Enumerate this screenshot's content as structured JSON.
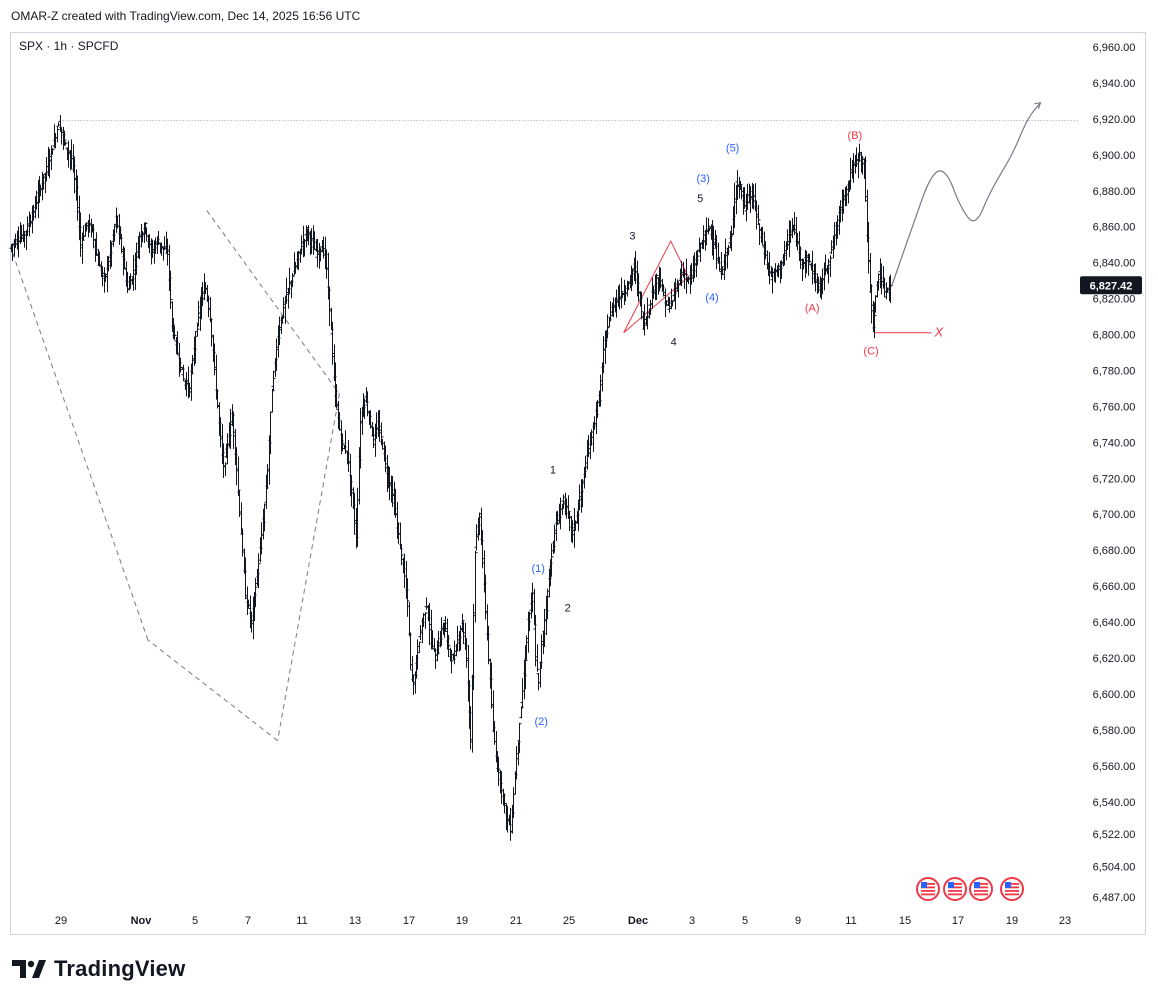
{
  "header": {
    "caption": "OMAR-Z created with TradingView.com, Dec 14, 2025 16:56 UTC"
  },
  "symbol": {
    "text": "SPX · 1h · SPCFD"
  },
  "brand": {
    "name": "TradingView",
    "icon": "tradingview-logo-icon"
  },
  "colors": {
    "bar": "#131722",
    "blue": "#2962ff",
    "red": "#f23645",
    "grid_line": "#d1d4dc",
    "projection": "#787b86"
  },
  "chart_data": {
    "type": "ohlc",
    "price_label": "6,827.42",
    "x_ticks": [
      "29",
      "Nov",
      "5",
      "7",
      "11",
      "13",
      "17",
      "19",
      "21",
      "25",
      "Dec",
      "3",
      "5",
      "9",
      "11",
      "15",
      "17",
      "19",
      "23"
    ],
    "y_ticks": [
      {
        "value": 6960,
        "label": "6,960.00"
      },
      {
        "value": 6940,
        "label": "6,940.00"
      },
      {
        "value": 6920,
        "label": "6,920.00"
      },
      {
        "value": 6900,
        "label": "6,900.00"
      },
      {
        "value": 6880,
        "label": "6,880.00"
      },
      {
        "value": 6860,
        "label": "6,860.00"
      },
      {
        "value": 6840,
        "label": "6,840.00"
      },
      {
        "value": 6820,
        "label": "6,820.00"
      },
      {
        "value": 6800,
        "label": "6,800.00"
      },
      {
        "value": 6780,
        "label": "6,780.00"
      },
      {
        "value": 6760,
        "label": "6,760.00"
      },
      {
        "value": 6740,
        "label": "6,740.00"
      },
      {
        "value": 6720,
        "label": "6,720.00"
      },
      {
        "value": 6700,
        "label": "6,700.00"
      },
      {
        "value": 6680,
        "label": "6,680.00"
      },
      {
        "value": 6660,
        "label": "6,660.00"
      },
      {
        "value": 6640,
        "label": "6,640.00"
      },
      {
        "value": 6620,
        "label": "6,620.00"
      },
      {
        "value": 6600,
        "label": "6,600.00"
      },
      {
        "value": 6580,
        "label": "6,580.00"
      },
      {
        "value": 6560,
        "label": "6,560.00"
      },
      {
        "value": 6540,
        "label": "6,540.00"
      },
      {
        "value": 6522,
        "label": "6,522.00"
      },
      {
        "value": 6504,
        "label": "6,504.00"
      },
      {
        "value": 6487,
        "label": "6,487.00"
      }
    ],
    "price_path": [
      [
        0,
        6848
      ],
      [
        5,
        6853
      ],
      [
        10,
        6856
      ],
      [
        15,
        6866
      ],
      [
        20,
        6880
      ],
      [
        25,
        6892
      ],
      [
        30,
        6908
      ],
      [
        33,
        6918
      ],
      [
        38,
        6905
      ],
      [
        42,
        6898
      ],
      [
        45,
        6880
      ],
      [
        48,
        6850
      ],
      [
        52,
        6862
      ],
      [
        56,
        6858
      ],
      [
        60,
        6840
      ],
      [
        64,
        6830
      ],
      [
        68,
        6845
      ],
      [
        72,
        6865
      ],
      [
        76,
        6848
      ],
      [
        80,
        6825
      ],
      [
        84,
        6835
      ],
      [
        88,
        6855
      ],
      [
        92,
        6860
      ],
      [
        96,
        6845
      ],
      [
        100,
        6852
      ],
      [
        104,
        6848
      ],
      [
        107,
        6845
      ],
      [
        110,
        6805
      ],
      [
        114,
        6790
      ],
      [
        118,
        6775
      ],
      [
        122,
        6770
      ],
      [
        126,
        6800
      ],
      [
        130,
        6820
      ],
      [
        133,
        6826
      ],
      [
        136,
        6810
      ],
      [
        139,
        6780
      ],
      [
        142,
        6750
      ],
      [
        145,
        6725
      ],
      [
        148,
        6740
      ],
      [
        151,
        6755
      ],
      [
        154,
        6725
      ],
      [
        157,
        6690
      ],
      [
        160,
        6655
      ],
      [
        164,
        6640
      ],
      [
        167,
        6660
      ],
      [
        170,
        6680
      ],
      [
        173,
        6705
      ],
      [
        175,
        6725
      ],
      [
        178,
        6770
      ],
      [
        182,
        6800
      ],
      [
        186,
        6815
      ],
      [
        190,
        6828
      ],
      [
        194,
        6838
      ],
      [
        198,
        6850
      ],
      [
        202,
        6858
      ],
      [
        205,
        6852
      ],
      [
        208,
        6845
      ],
      [
        211,
        6848
      ],
      [
        214,
        6845
      ],
      [
        217,
        6815
      ],
      [
        220,
        6775
      ],
      [
        223,
        6752
      ],
      [
        226,
        6738
      ],
      [
        229,
        6735
      ],
      [
        232,
        6712
      ],
      [
        235,
        6688
      ],
      [
        238,
        6752
      ],
      [
        241,
        6765
      ],
      [
        244,
        6755
      ],
      [
        247,
        6740
      ],
      [
        250,
        6750
      ],
      [
        253,
        6738
      ],
      [
        256,
        6722
      ],
      [
        259,
        6715
      ],
      [
        262,
        6700
      ],
      [
        265,
        6682
      ],
      [
        268,
        6665
      ],
      [
        270,
        6650
      ],
      [
        272,
        6615
      ],
      [
        274,
        6605
      ],
      [
        277,
        6625
      ],
      [
        280,
        6640
      ],
      [
        283,
        6650
      ],
      [
        286,
        6630
      ],
      [
        289,
        6620
      ],
      [
        292,
        6632
      ],
      [
        295,
        6640
      ],
      [
        298,
        6625
      ],
      [
        301,
        6618
      ],
      [
        304,
        6630
      ],
      [
        307,
        6640
      ],
      [
        310,
        6620
      ],
      [
        313,
        6575
      ],
      [
        316,
        6680
      ],
      [
        319,
        6700
      ],
      [
        322,
        6660
      ],
      [
        325,
        6620
      ],
      [
        328,
        6580
      ],
      [
        331,
        6560
      ],
      [
        334,
        6548
      ],
      [
        337,
        6532
      ],
      [
        340,
        6525
      ],
      [
        343,
        6555
      ],
      [
        346,
        6585
      ],
      [
        349,
        6610
      ],
      [
        352,
        6640
      ],
      [
        355,
        6655
      ],
      [
        357,
        6620
      ],
      [
        359,
        6605
      ],
      [
        361,
        6628
      ],
      [
        364,
        6648
      ],
      [
        367,
        6672
      ],
      [
        370,
        6690
      ],
      [
        373,
        6700
      ],
      [
        376,
        6708
      ],
      [
        379,
        6700
      ],
      [
        382,
        6690
      ],
      [
        385,
        6700
      ],
      [
        388,
        6712
      ],
      [
        391,
        6728
      ],
      [
        394,
        6740
      ],
      [
        397,
        6752
      ],
      [
        400,
        6765
      ],
      [
        403,
        6790
      ],
      [
        406,
        6805
      ],
      [
        409,
        6815
      ],
      [
        412,
        6820
      ],
      [
        415,
        6822
      ],
      [
        418,
        6825
      ],
      [
        421,
        6830
      ],
      [
        424,
        6838
      ],
      [
        427,
        6825
      ],
      [
        430,
        6805
      ],
      [
        433,
        6812
      ],
      [
        436,
        6822
      ],
      [
        439,
        6832
      ],
      [
        442,
        6828
      ],
      [
        445,
        6818
      ],
      [
        448,
        6815
      ],
      [
        451,
        6822
      ],
      [
        454,
        6830
      ],
      [
        457,
        6835
      ],
      [
        460,
        6830
      ],
      [
        463,
        6832
      ],
      [
        466,
        6842
      ],
      [
        469,
        6850
      ],
      [
        472,
        6856
      ],
      [
        475,
        6860
      ],
      [
        478,
        6852
      ],
      [
        481,
        6838
      ],
      [
        484,
        6835
      ],
      [
        487,
        6848
      ],
      [
        490,
        6855
      ],
      [
        493,
        6885
      ],
      [
        496,
        6882
      ],
      [
        499,
        6870
      ],
      [
        502,
        6878
      ],
      [
        505,
        6875
      ],
      [
        508,
        6862
      ],
      [
        511,
        6850
      ],
      [
        514,
        6840
      ],
      [
        517,
        6832
      ],
      [
        520,
        6835
      ],
      [
        523,
        6838
      ],
      [
        526,
        6845
      ],
      [
        529,
        6855
      ],
      [
        532,
        6860
      ],
      [
        535,
        6850
      ],
      [
        538,
        6840
      ],
      [
        541,
        6842
      ],
      [
        544,
        6838
      ],
      [
        547,
        6830
      ],
      [
        550,
        6825
      ],
      [
        553,
        6835
      ],
      [
        556,
        6840
      ],
      [
        559,
        6852
      ],
      [
        562,
        6862
      ],
      [
        565,
        6875
      ],
      [
        568,
        6880
      ],
      [
        571,
        6890
      ],
      [
        574,
        6895
      ],
      [
        577,
        6900
      ],
      [
        580,
        6895
      ],
      [
        582,
        6855
      ],
      [
        584,
        6825
      ],
      [
        586,
        6805
      ],
      [
        588,
        6820
      ],
      [
        590,
        6835
      ],
      [
        592,
        6830
      ],
      [
        594,
        6822
      ],
      [
        596,
        6826
      ],
      [
        598,
        6827
      ]
    ],
    "reference_lines": [
      {
        "style": "dotted",
        "from": [
          33,
          6919
        ],
        "to": [
          725,
          6919
        ]
      },
      {
        "style": "dashed",
        "from": [
          133,
          6869
        ],
        "to": [
          223,
          6767
        ]
      },
      {
        "style": "dashed",
        "from": [
          223,
          6767
        ],
        "to": [
          181,
          6574
        ]
      },
      {
        "style": "dashed",
        "from": [
          181,
          6574
        ],
        "to": [
          93,
          6630
        ]
      },
      {
        "style": "dashed",
        "from": [
          93,
          6630
        ],
        "to": [
          0,
          6848
        ]
      },
      {
        "style": "solid",
        "color": "red",
        "from": [
          586,
          6801
        ],
        "to": [
          625,
          6801
        ]
      }
    ],
    "triangle": [
      [
        416,
        6801
      ],
      [
        448,
        6852
      ],
      [
        460,
        6832
      ]
    ],
    "projection_path": [
      [
        598,
        6827
      ],
      [
        612,
        6860
      ],
      [
        625,
        6890
      ],
      [
        635,
        6892
      ],
      [
        645,
        6870
      ],
      [
        655,
        6860
      ],
      [
        665,
        6880
      ],
      [
        680,
        6900
      ],
      [
        690,
        6920
      ],
      [
        699,
        6929
      ]
    ],
    "wave_labels": [
      {
        "text": "(1)",
        "x": 358,
        "y": 6670,
        "color": "blue"
      },
      {
        "text": "(2)",
        "x": 360,
        "y": 6585,
        "color": "blue"
      },
      {
        "text": "(3)",
        "x": 470,
        "y": 6887,
        "color": "blue"
      },
      {
        "text": "(4)",
        "x": 476,
        "y": 6821,
        "color": "blue"
      },
      {
        "text": "(5)",
        "x": 490,
        "y": 6904,
        "color": "blue"
      },
      {
        "text": "1",
        "x": 368,
        "y": 6725,
        "color": "black"
      },
      {
        "text": "2",
        "x": 378,
        "y": 6648,
        "color": "black"
      },
      {
        "text": "3",
        "x": 422,
        "y": 6855,
        "color": "black"
      },
      {
        "text": "4",
        "x": 450,
        "y": 6796,
        "color": "black"
      },
      {
        "text": "5",
        "x": 468,
        "y": 6876,
        "color": "black"
      },
      {
        "text": "(A)",
        "x": 544,
        "y": 6815,
        "color": "red"
      },
      {
        "text": "(B)",
        "x": 573,
        "y": 6911,
        "color": "red"
      },
      {
        "text": "(C)",
        "x": 584,
        "y": 6791,
        "color": "red"
      },
      {
        "text": "X",
        "x": 630,
        "y": 6801,
        "color": "red"
      }
    ],
    "event_icons": 4
  }
}
